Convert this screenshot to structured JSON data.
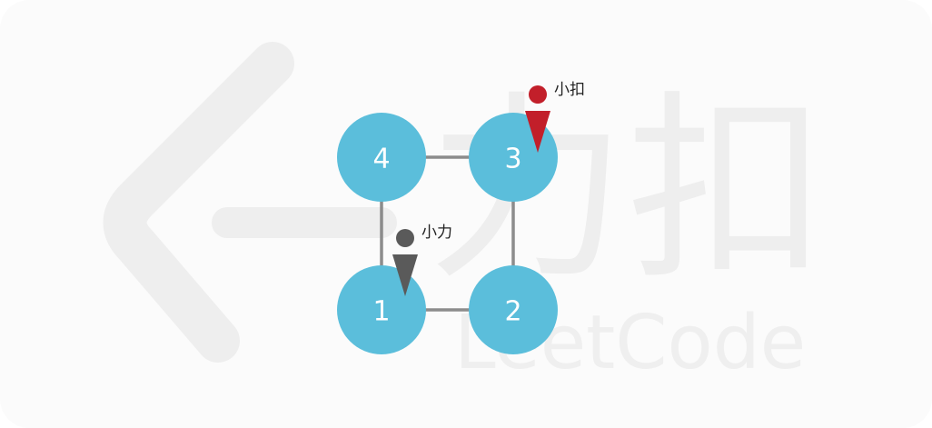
{
  "watermark": {
    "chinese": "力扣",
    "english": "LeetCode"
  },
  "colors": {
    "node_fill": "#5bbedb",
    "edge": "#8c8c8c",
    "person_red": "#c21f2a",
    "person_gray": "#5a5a5a"
  },
  "graph": {
    "nodes": [
      {
        "id": "4",
        "label": "4"
      },
      {
        "id": "3",
        "label": "3"
      },
      {
        "id": "1",
        "label": "1"
      },
      {
        "id": "2",
        "label": "2"
      }
    ],
    "edges": [
      [
        "4",
        "3"
      ],
      [
        "4",
        "1"
      ],
      [
        "3",
        "2"
      ],
      [
        "1",
        "2"
      ]
    ]
  },
  "people": [
    {
      "name": "小扣",
      "at_node": "3",
      "color": "#c21f2a"
    },
    {
      "name": "小力",
      "at_node": "1",
      "color": "#5a5a5a"
    }
  ]
}
